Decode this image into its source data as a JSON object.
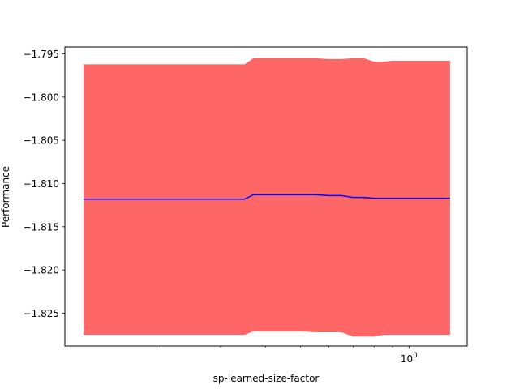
{
  "chart_data": {
    "type": "line",
    "title": "",
    "xlabel": "sp-learned-size-factor",
    "ylabel": "Performance",
    "xscale": "log",
    "xlim": [
      0.111,
      1.45
    ],
    "ylim": [
      -1.8288,
      -1.7942
    ],
    "x_major_ticks": [
      1.0
    ],
    "x_major_tick_labels": [
      "10^0"
    ],
    "x_minor_ticks": [
      0.2,
      0.3,
      0.4,
      0.5,
      0.6,
      0.7,
      0.8,
      0.9
    ],
    "y_ticks": [
      -1.795,
      -1.8,
      -1.805,
      -1.81,
      -1.815,
      -1.82,
      -1.825
    ],
    "y_tick_labels": [
      "−1.795",
      "−1.800",
      "−1.805",
      "−1.810",
      "−1.815",
      "−1.820",
      "−1.825"
    ],
    "grid": false,
    "legend": false,
    "colors": {
      "mean_line": "#0000ff",
      "band": "#ff6666"
    },
    "series": [
      {
        "x": [
          0.125,
          0.16,
          0.2,
          0.3,
          0.35,
          0.37,
          0.4,
          0.45,
          0.5,
          0.55,
          0.6,
          0.65,
          0.7,
          0.75,
          0.8,
          0.85,
          0.9,
          1.0,
          1.1,
          1.2,
          1.3
        ],
        "y": [
          -1.8118,
          -1.8118,
          -1.8118,
          -1.8118,
          -1.8118,
          -1.8113,
          -1.8113,
          -1.8113,
          -1.8113,
          -1.8113,
          -1.8114,
          -1.8114,
          -1.8116,
          -1.8116,
          -1.8117,
          -1.8117,
          -1.8117,
          -1.8117,
          -1.8117,
          -1.8117,
          -1.8117
        ],
        "upper": [
          -1.7962,
          -1.7962,
          -1.7962,
          -1.7962,
          -1.7962,
          -1.7955,
          -1.7955,
          -1.7955,
          -1.7955,
          -1.7955,
          -1.7956,
          -1.7956,
          -1.7955,
          -1.7955,
          -1.7959,
          -1.7959,
          -1.7958,
          -1.7958,
          -1.7958,
          -1.7958,
          -1.7958
        ],
        "lower": [
          -1.8275,
          -1.8275,
          -1.8275,
          -1.8275,
          -1.8275,
          -1.8271,
          -1.8271,
          -1.8271,
          -1.8271,
          -1.8272,
          -1.8272,
          -1.8272,
          -1.8277,
          -1.8277,
          -1.8277,
          -1.8275,
          -1.8275,
          -1.8275,
          -1.8275,
          -1.8275,
          -1.8275
        ]
      }
    ]
  }
}
